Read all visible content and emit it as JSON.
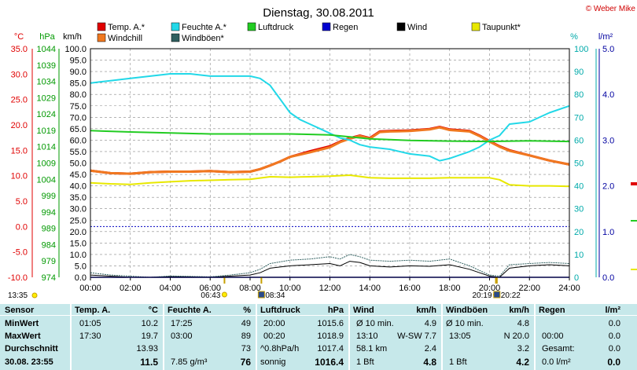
{
  "title": "Dienstag, 30.08.2011",
  "copyright": "© Weber Mike",
  "legend": [
    {
      "label": "Temp. A.*",
      "color": "#e00000"
    },
    {
      "label": "Feuchte A.*",
      "color": "#22d8e8"
    },
    {
      "label": "Luftdruck",
      "color": "#22cc22"
    },
    {
      "label": "Regen",
      "color": "#0000d0"
    },
    {
      "label": "Wind",
      "color": "#000000"
    },
    {
      "label": "Taupunkt*",
      "color": "#e8e800"
    },
    {
      "label": "Windchill",
      "color": "#f07820"
    },
    {
      "label": "Windböen*",
      "color": "#2f5f5f"
    }
  ],
  "axes": {
    "temp": {
      "unit": "°C",
      "ticks": [
        "35.0",
        "30.0",
        "25.0",
        "20.0",
        "15.0",
        "10.0",
        "5.0",
        "0.0",
        "-5.0",
        "-10.0"
      ],
      "color": "#e00000"
    },
    "press": {
      "unit": "hPa",
      "ticks": [
        "1044",
        "1039",
        "1034",
        "1029",
        "1024",
        "1019",
        "1014",
        "1009",
        "1004",
        "999",
        "994",
        "989",
        "984",
        "979",
        "974"
      ],
      "color": "#009900"
    },
    "wind": {
      "unit": "km/h",
      "ticks": [
        "100.0",
        "95.0",
        "90.0",
        "85.0",
        "80.0",
        "75.0",
        "70.0",
        "65.0",
        "60.0",
        "55.0",
        "50.0",
        "45.0",
        "40.0",
        "35.0",
        "30.0",
        "25.0",
        "20.0",
        "15.0",
        "10.0",
        "5.0",
        "0.0"
      ],
      "color": "#000000"
    },
    "hum": {
      "unit": "%",
      "ticks": [
        "100",
        "90",
        "80",
        "70",
        "60",
        "50",
        "40",
        "30",
        "20",
        "10",
        "0"
      ],
      "color": "#00aaaa"
    },
    "rain": {
      "unit": "l/m²",
      "ticks": [
        "5.0",
        "4.0",
        "3.0",
        "2.0",
        "1.0",
        "0.0"
      ],
      "color": "#0000a0"
    },
    "x": {
      "ticks": [
        "00:00",
        "02:00",
        "04:00",
        "06:00",
        "08:00",
        "10:00",
        "12:00",
        "14:00",
        "16:00",
        "18:00",
        "20:00",
        "22:00",
        "24:00"
      ]
    }
  },
  "events": {
    "sunrise": "06:43",
    "moon1": "08:34",
    "sunset": "20:19",
    "moon2": "20:22",
    "left_time": "13:35"
  },
  "chart_data": {
    "type": "line",
    "title": "Dienstag, 30.08.2011",
    "x_range_hours": [
      0,
      24
    ],
    "temp_range": [
      -10,
      35
    ],
    "hum_range": [
      0,
      100
    ],
    "press_range": [
      974,
      1044
    ],
    "wind_range": [
      0,
      100
    ],
    "rain_range": [
      0,
      5
    ],
    "grid": true,
    "series": [
      {
        "name": "Temp. A.*",
        "axis": "temp",
        "color": "#e00000",
        "x": [
          0,
          1,
          2,
          3,
          4,
          5,
          6,
          7,
          8,
          8.5,
          9,
          9.5,
          10,
          11,
          12,
          12.5,
          13,
          13.5,
          14,
          14.5,
          15,
          16,
          17,
          17.5,
          18,
          19,
          19.5,
          20,
          20.5,
          21,
          22,
          23,
          24
        ],
        "y": [
          11.0,
          10.5,
          10.4,
          10.7,
          10.8,
          10.8,
          10.9,
          10.7,
          10.8,
          11.3,
          12.0,
          12.8,
          13.7,
          14.8,
          15.8,
          16.7,
          17.4,
          17.9,
          17.4,
          18.7,
          18.8,
          18.9,
          19.2,
          19.6,
          19.1,
          18.8,
          17.9,
          16.8,
          15.8,
          15.0,
          14.0,
          13.0,
          12.2
        ]
      },
      {
        "name": "Windchill",
        "axis": "temp",
        "color": "#f07820",
        "x": [
          0,
          1,
          2,
          3,
          4,
          5,
          6,
          7,
          8,
          8.5,
          9,
          9.5,
          10,
          11,
          12,
          12.5,
          13,
          13.5,
          14,
          14.5,
          15,
          16,
          17,
          17.5,
          18,
          19,
          19.5,
          20,
          20.5,
          21,
          22,
          23,
          24
        ],
        "y": [
          11.0,
          10.5,
          10.4,
          10.7,
          10.8,
          10.8,
          10.9,
          10.7,
          10.8,
          11.3,
          12.0,
          12.8,
          13.7,
          14.6,
          15.6,
          16.6,
          17.3,
          17.8,
          17.3,
          18.6,
          18.7,
          18.8,
          19.1,
          19.5,
          19.0,
          18.7,
          17.8,
          16.7,
          15.7,
          14.9,
          14.0,
          13.0,
          12.2
        ]
      },
      {
        "name": "Feuchte A.*",
        "axis": "hum",
        "color": "#22d8e8",
        "x": [
          0,
          1,
          2,
          3,
          4,
          5,
          6,
          7,
          8,
          8.5,
          9,
          9.5,
          10,
          10.5,
          11,
          11.5,
          12,
          12.5,
          13,
          13.5,
          14,
          15,
          16,
          17,
          17.5,
          18,
          19,
          19.5,
          20,
          20.5,
          21,
          22,
          23,
          24
        ],
        "y": [
          85,
          86,
          87,
          88,
          89,
          89,
          88,
          88,
          88,
          87,
          84,
          78,
          72,
          69,
          67,
          65,
          63,
          61,
          60,
          58,
          57,
          56,
          54,
          53,
          51,
          52,
          55,
          57,
          60,
          62,
          67,
          68,
          72,
          75
        ]
      },
      {
        "name": "Luftdruck",
        "axis": "press",
        "color": "#22cc22",
        "x": [
          0,
          2,
          4,
          6,
          8,
          10,
          12,
          14,
          16,
          18,
          20,
          22,
          24
        ],
        "y": [
          1018.9,
          1018.5,
          1018.2,
          1017.9,
          1017.9,
          1017.9,
          1017.6,
          1016.4,
          1015.9,
          1015.7,
          1015.6,
          1015.8,
          1015.6
        ]
      },
      {
        "name": "Taupunkt*",
        "axis": "temp",
        "color": "#e8e800",
        "x": [
          0,
          1,
          2,
          3,
          4,
          5,
          6,
          7,
          8,
          9,
          10,
          11,
          12,
          13,
          14,
          15,
          16,
          17,
          18,
          19,
          20,
          20.5,
          21,
          22,
          23,
          24
        ],
        "y": [
          8.6,
          8.4,
          8.3,
          8.6,
          8.8,
          9.0,
          9.1,
          9.2,
          9.3,
          9.8,
          9.7,
          9.8,
          9.9,
          10.1,
          9.6,
          9.5,
          9.5,
          9.5,
          9.6,
          9.6,
          9.6,
          9.2,
          8.2,
          8.0,
          8.0,
          7.9
        ]
      },
      {
        "name": "Wind",
        "axis": "wind",
        "color": "#000000",
        "x": [
          0,
          1,
          2,
          3,
          4,
          5,
          6,
          7,
          8,
          8.5,
          9,
          10,
          11,
          12,
          12.5,
          13,
          13.5,
          14,
          15,
          16,
          17,
          18,
          19,
          19.5,
          20,
          20.5,
          21,
          22,
          23,
          24
        ],
        "y": [
          1,
          0.5,
          0,
          0,
          0.3,
          0.2,
          0,
          0.5,
          1,
          2,
          4,
          5,
          5.5,
          6,
          5,
          7,
          6.5,
          5,
          4.5,
          5,
          4.8,
          5.5,
          3.5,
          2,
          0.5,
          0,
          4,
          5,
          5.5,
          5
        ]
      },
      {
        "name": "Windböen*",
        "axis": "wind",
        "color": "#2f5f5f",
        "x": [
          0,
          1,
          2,
          3,
          4,
          5,
          6,
          7,
          8,
          8.5,
          9,
          10,
          11,
          12,
          12.5,
          13,
          13.5,
          14,
          15,
          16,
          17,
          18,
          19,
          19.5,
          20,
          20.5,
          21,
          22,
          23,
          24
        ],
        "y": [
          2,
          1,
          0.5,
          0,
          0.6,
          0.4,
          0.2,
          1,
          2,
          3.5,
          6,
          7.5,
          8,
          9,
          8,
          10,
          9,
          7.5,
          7,
          7.5,
          7,
          8,
          5,
          3,
          1,
          0.5,
          5.5,
          6,
          6.5,
          6
        ]
      },
      {
        "name": "Regen",
        "axis": "rain",
        "color": "#0000d0",
        "x": [
          0,
          24
        ],
        "y": [
          0,
          0
        ]
      }
    ]
  },
  "stats": {
    "headers": {
      "sensor": "Sensor",
      "temp": "Temp. A.",
      "temp_unit": "°C",
      "hum": "Feuchte A.",
      "hum_unit": "%",
      "press": "Luftdruck",
      "press_unit": "hPa",
      "wind": "Wind",
      "wind_unit": "km/h",
      "gust": "Windböen",
      "gust_unit": "km/h",
      "rain": "Regen",
      "rain_unit": "l/m²"
    },
    "rows": [
      {
        "label": "MinWert",
        "temp_time": "01:05",
        "temp": "10.2",
        "hum_time": "17:25",
        "hum": "49",
        "press_time": "20:00",
        "press": "1015.6",
        "wind_label": "Ø 10 min.",
        "wind": "4.9",
        "gust_label": "Ø 10 min.",
        "gust": "4.8",
        "rain_label": "",
        "rain": "0.0"
      },
      {
        "label": "MaxWert",
        "temp_time": "17:30",
        "temp": "19.7",
        "hum_time": "03:00",
        "hum": "89",
        "press_time": "00:20",
        "press": "1018.9",
        "wind_label": "13:10",
        "wind_dir": "W-SW 7.7",
        "wind": "",
        "gust_label": "13:05",
        "gust": "N 20.0",
        "rain_label": "00:00",
        "rain": "0.0"
      },
      {
        "label": "Durchschnitt",
        "temp_time": "",
        "temp": "13.93",
        "hum_time": "",
        "hum": "73",
        "press_time": "^0.8hPa/h",
        "press": "1017.4",
        "wind_label": "58.1 km",
        "wind": "2.4",
        "gust_label": "",
        "gust": "3.2",
        "rain_label": "Gesamt:",
        "rain": "0.0"
      },
      {
        "label": "30.08.  23:55",
        "temp_time": "",
        "temp": "11.5",
        "hum_time": "7.85 g/m³",
        "hum": "76",
        "press_time": "sonnig",
        "press": "1016.4",
        "wind_label": "1 Bft",
        "wind": "4.8",
        "gust_label": "1 Bft",
        "gust": "4.2",
        "rain_label": "0.0 l/m²",
        "rain": "0.0"
      }
    ]
  }
}
